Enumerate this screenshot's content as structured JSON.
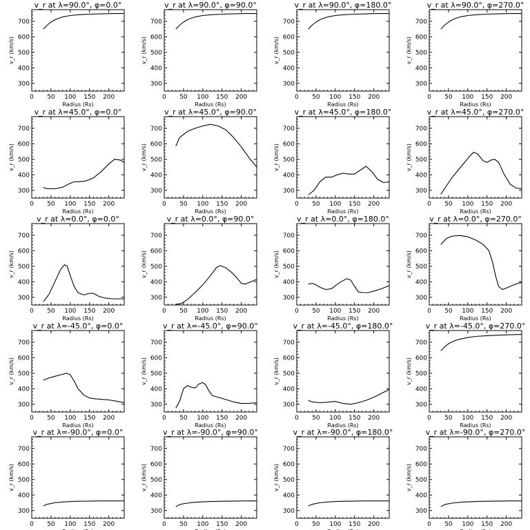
{
  "chart_data": [
    {
      "type": "line",
      "title": "v_r at λ=90.0°, φ=0.0°",
      "xlabel": "Radius (Rs)",
      "ylabel": "v_r (km/s)",
      "xlim": [
        0,
        240
      ],
      "ylim": [
        250,
        775
      ],
      "xticks": [
        0,
        50,
        100,
        150,
        200
      ],
      "yticks": [
        300,
        400,
        500,
        600,
        700
      ],
      "x": [
        30,
        40,
        50,
        60,
        70,
        80,
        100,
        120,
        150,
        180,
        210,
        240
      ],
      "y": [
        650,
        675,
        695,
        710,
        720,
        728,
        737,
        742,
        746,
        748,
        750,
        750
      ]
    },
    {
      "type": "line",
      "title": "v_r at λ=90.0°, φ=90.0°",
      "xlabel": "Radius (Rs)",
      "ylabel": "v_r (km/s)",
      "xlim": [
        0,
        240
      ],
      "ylim": [
        250,
        775
      ],
      "xticks": [
        0,
        50,
        100,
        150,
        200
      ],
      "yticks": [
        300,
        400,
        500,
        600,
        700
      ],
      "x": [
        30,
        40,
        50,
        60,
        70,
        80,
        100,
        120,
        150,
        180,
        210,
        240
      ],
      "y": [
        650,
        675,
        695,
        710,
        720,
        728,
        737,
        742,
        746,
        748,
        750,
        750
      ]
    },
    {
      "type": "line",
      "title": "v_r at λ=90.0°, φ=180.0°",
      "xlabel": "Radius (Rs)",
      "ylabel": "v_r (km/s)",
      "xlim": [
        0,
        240
      ],
      "ylim": [
        250,
        775
      ],
      "xticks": [
        0,
        50,
        100,
        150,
        200
      ],
      "yticks": [
        300,
        400,
        500,
        600,
        700
      ],
      "x": [
        30,
        40,
        50,
        60,
        70,
        80,
        100,
        120,
        150,
        180,
        210,
        240
      ],
      "y": [
        650,
        675,
        695,
        710,
        720,
        728,
        737,
        742,
        746,
        748,
        750,
        750
      ]
    },
    {
      "type": "line",
      "title": "v_r at λ=90.0°, φ=270.0°",
      "xlabel": "Radius (Rs)",
      "ylabel": "v_r (km/s)",
      "xlim": [
        0,
        240
      ],
      "ylim": [
        250,
        775
      ],
      "xticks": [
        0,
        50,
        100,
        150,
        200
      ],
      "yticks": [
        300,
        400,
        500,
        600,
        700
      ],
      "x": [
        30,
        40,
        50,
        60,
        70,
        80,
        100,
        120,
        150,
        180,
        210,
        240
      ],
      "y": [
        650,
        675,
        695,
        710,
        720,
        728,
        737,
        742,
        746,
        748,
        750,
        750
      ]
    },
    {
      "type": "line",
      "title": "v_r at λ=45.0°, φ=0.0°",
      "xlabel": "Radius (Rs)",
      "ylabel": "v_r (km/s)",
      "xlim": [
        0,
        240
      ],
      "ylim": [
        250,
        775
      ],
      "xticks": [
        0,
        50,
        100,
        150,
        200
      ],
      "yticks": [
        300,
        400,
        500,
        600,
        700
      ],
      "x": [
        30,
        40,
        60,
        80,
        100,
        110,
        120,
        140,
        160,
        180,
        200,
        215,
        230,
        240
      ],
      "y": [
        318,
        310,
        310,
        320,
        345,
        355,
        355,
        360,
        380,
        420,
        470,
        500,
        495,
        480
      ]
    },
    {
      "type": "line",
      "title": "v_r at λ=45.0°, φ=90.0°",
      "xlabel": "Radius (Rs)",
      "ylabel": "v_r (km/s)",
      "xlim": [
        0,
        240
      ],
      "ylim": [
        250,
        775
      ],
      "xticks": [
        0,
        50,
        100,
        150,
        200
      ],
      "yticks": [
        300,
        400,
        500,
        600,
        700
      ],
      "x": [
        30,
        40,
        60,
        80,
        100,
        120,
        140,
        160,
        180,
        200,
        220,
        240
      ],
      "y": [
        585,
        640,
        680,
        700,
        715,
        725,
        715,
        690,
        640,
        580,
        510,
        450
      ]
    },
    {
      "type": "line",
      "title": "v_r at λ=45.0°, φ=180.0°",
      "xlabel": "Radius (Rs)",
      "ylabel": "v_r (km/s)",
      "xlim": [
        0,
        240
      ],
      "ylim": [
        250,
        775
      ],
      "xticks": [
        0,
        50,
        100,
        150,
        200
      ],
      "yticks": [
        300,
        400,
        500,
        600,
        700
      ],
      "x": [
        30,
        45,
        60,
        75,
        90,
        105,
        120,
        135,
        150,
        165,
        180,
        195,
        210,
        225,
        240
      ],
      "y": [
        270,
        300,
        355,
        385,
        385,
        400,
        410,
        405,
        405,
        430,
        455,
        420,
        370,
        350,
        355
      ]
    },
    {
      "type": "line",
      "title": "v_r at λ=45.0°, φ=270.0°",
      "xlabel": "Radius (Rs)",
      "ylabel": "v_r (km/s)",
      "xlim": [
        0,
        240
      ],
      "ylim": [
        250,
        775
      ],
      "xticks": [
        0,
        50,
        100,
        150,
        200
      ],
      "yticks": [
        300,
        400,
        500,
        600,
        700
      ],
      "x": [
        30,
        45,
        60,
        75,
        90,
        105,
        115,
        125,
        140,
        150,
        160,
        170,
        180,
        195,
        210,
        225,
        240
      ],
      "y": [
        275,
        330,
        385,
        430,
        475,
        520,
        545,
        535,
        490,
        480,
        495,
        500,
        480,
        400,
        340,
        315,
        310
      ]
    },
    {
      "type": "line",
      "title": "v_r at λ=0.0°, φ=0.0°",
      "xlabel": "Radius (Rs)",
      "ylabel": "v_r (km/s)",
      "xlim": [
        0,
        240
      ],
      "ylim": [
        250,
        775
      ],
      "xticks": [
        0,
        50,
        100,
        150,
        200
      ],
      "yticks": [
        300,
        400,
        500,
        600,
        700
      ],
      "x": [
        30,
        45,
        60,
        75,
        85,
        92,
        100,
        110,
        120,
        135,
        150,
        160,
        175,
        190,
        210,
        240
      ],
      "y": [
        272,
        320,
        400,
        480,
        510,
        500,
        440,
        370,
        330,
        315,
        325,
        325,
        305,
        295,
        290,
        290
      ]
    },
    {
      "type": "line",
      "title": "v_r at λ=0.0°, φ=90.0°",
      "xlabel": "Radius (Rs)",
      "ylabel": "v_r (km/s)",
      "xlim": [
        0,
        240
      ],
      "ylim": [
        250,
        775
      ],
      "xticks": [
        0,
        50,
        100,
        150,
        200
      ],
      "yticks": [
        300,
        400,
        500,
        600,
        700
      ],
      "x": [
        30,
        45,
        60,
        80,
        100,
        120,
        135,
        145,
        160,
        175,
        190,
        200,
        210,
        225,
        240
      ],
      "y": [
        255,
        260,
        285,
        330,
        380,
        440,
        490,
        505,
        490,
        460,
        420,
        390,
        385,
        400,
        415
      ]
    },
    {
      "type": "line",
      "title": "v_r at λ=0.0°, φ=180.0°",
      "xlabel": "Radius (Rs)",
      "ylabel": "v_r (km/s)",
      "xlim": [
        0,
        240
      ],
      "ylim": [
        250,
        775
      ],
      "xticks": [
        0,
        50,
        100,
        150,
        200
      ],
      "yticks": [
        300,
        400,
        500,
        600,
        700
      ],
      "x": [
        30,
        40,
        50,
        60,
        75,
        90,
        100,
        115,
        130,
        140,
        150,
        160,
        170,
        185,
        200,
        220,
        240
      ],
      "y": [
        385,
        390,
        380,
        365,
        350,
        355,
        375,
        400,
        420,
        410,
        370,
        335,
        330,
        330,
        340,
        355,
        375
      ]
    },
    {
      "type": "line",
      "title": "v_r at λ=0.0°, φ=270.0°",
      "xlabel": "Radius (Rs)",
      "ylabel": "v_r (km/s)",
      "xlim": [
        0,
        240
      ],
      "ylim": [
        250,
        775
      ],
      "xticks": [
        0,
        50,
        100,
        150,
        200
      ],
      "yticks": [
        300,
        400,
        500,
        600,
        700
      ],
      "x": [
        30,
        45,
        60,
        80,
        100,
        120,
        140,
        155,
        165,
        172,
        180,
        190,
        200,
        215,
        230,
        240
      ],
      "y": [
        640,
        680,
        695,
        698,
        690,
        670,
        640,
        600,
        520,
        440,
        370,
        350,
        360,
        375,
        390,
        395
      ]
    },
    {
      "type": "line",
      "title": "v_r at λ=-45.0°, φ=0.0°",
      "xlabel": "Radius (Rs)",
      "ylabel": "v_r (km/s)",
      "xlim": [
        0,
        240
      ],
      "ylim": [
        250,
        775
      ],
      "xticks": [
        0,
        50,
        100,
        150,
        200
      ],
      "yticks": [
        300,
        400,
        500,
        600,
        700
      ],
      "x": [
        30,
        45,
        60,
        75,
        90,
        100,
        110,
        120,
        135,
        150,
        165,
        180,
        200,
        220,
        240
      ],
      "y": [
        455,
        470,
        480,
        490,
        500,
        490,
        450,
        400,
        360,
        340,
        335,
        332,
        328,
        320,
        310
      ]
    },
    {
      "type": "line",
      "title": "v_r at λ=-45.0°, φ=90.0°",
      "xlabel": "Radius (Rs)",
      "ylabel": "v_r (km/s)",
      "xlim": [
        0,
        240
      ],
      "ylim": [
        250,
        775
      ],
      "xticks": [
        0,
        50,
        100,
        150,
        200
      ],
      "yticks": [
        300,
        400,
        500,
        600,
        700
      ],
      "x": [
        30,
        40,
        50,
        60,
        70,
        80,
        90,
        100,
        108,
        115,
        125,
        140,
        160,
        180,
        200,
        220,
        240
      ],
      "y": [
        275,
        320,
        400,
        420,
        410,
        405,
        430,
        440,
        425,
        390,
        355,
        345,
        330,
        315,
        305,
        305,
        310
      ]
    },
    {
      "type": "line",
      "title": "v_r at λ=-45.0°, φ=180.0°",
      "xlabel": "Radius (Rs)",
      "ylabel": "v_r (km/s)",
      "xlim": [
        0,
        240
      ],
      "ylim": [
        250,
        775
      ],
      "xticks": [
        0,
        50,
        100,
        150,
        200
      ],
      "yticks": [
        300,
        400,
        500,
        600,
        700
      ],
      "x": [
        30,
        40,
        60,
        80,
        100,
        120,
        140,
        160,
        180,
        200,
        220,
        240
      ],
      "y": [
        325,
        315,
        310,
        313,
        318,
        305,
        300,
        310,
        325,
        345,
        370,
        395
      ]
    },
    {
      "type": "line",
      "title": "v_r at λ=-45.0°, φ=270.0°",
      "xlabel": "Radius (Rs)",
      "ylabel": "v_r (km/s)",
      "xlim": [
        0,
        240
      ],
      "ylim": [
        250,
        775
      ],
      "xticks": [
        0,
        50,
        100,
        150,
        200
      ],
      "yticks": [
        300,
        400,
        500,
        600,
        700
      ],
      "x": [
        30,
        40,
        50,
        60,
        70,
        80,
        100,
        120,
        150,
        180,
        210,
        240
      ],
      "y": [
        645,
        670,
        690,
        703,
        713,
        720,
        730,
        737,
        742,
        745,
        748,
        750
      ]
    },
    {
      "type": "line",
      "title": "v_r at λ=-90.0°, φ=0.0°",
      "xlabel": "Radius (Rs)",
      "ylabel": "v_r (km/s)",
      "xlim": [
        0,
        240
      ],
      "ylim": [
        250,
        775
      ],
      "xticks": [
        0,
        50,
        100,
        150,
        200
      ],
      "yticks": [
        300,
        400,
        500,
        600,
        700
      ],
      "x": [
        30,
        40,
        50,
        60,
        80,
        100,
        120,
        150,
        180,
        210,
        240
      ],
      "y": [
        330,
        340,
        345,
        350,
        355,
        358,
        360,
        361,
        362,
        362,
        362
      ]
    },
    {
      "type": "line",
      "title": "v_r at λ=-90.0°, φ=90.0°",
      "xlabel": "Radius (Rs)",
      "ylabel": "v_r (km/s)",
      "xlim": [
        0,
        240
      ],
      "ylim": [
        250,
        775
      ],
      "xticks": [
        0,
        50,
        100,
        150,
        200
      ],
      "yticks": [
        300,
        400,
        500,
        600,
        700
      ],
      "x": [
        30,
        40,
        50,
        60,
        80,
        100,
        120,
        150,
        180,
        210,
        240
      ],
      "y": [
        325,
        338,
        344,
        348,
        353,
        356,
        358,
        360,
        361,
        362,
        362
      ]
    },
    {
      "type": "line",
      "title": "v_r at λ=-90.0°, φ=180.0°",
      "xlabel": "Radius (Rs)",
      "ylabel": "v_r (km/s)",
      "xlim": [
        0,
        240
      ],
      "ylim": [
        250,
        775
      ],
      "xticks": [
        0,
        50,
        100,
        150,
        200
      ],
      "yticks": [
        300,
        400,
        500,
        600,
        700
      ],
      "x": [
        30,
        40,
        50,
        60,
        80,
        100,
        120,
        150,
        180,
        210,
        240
      ],
      "y": [
        330,
        340,
        345,
        350,
        355,
        358,
        360,
        361,
        362,
        362,
        362
      ]
    },
    {
      "type": "line",
      "title": "v_r at λ=-90.0°, φ=270.0°",
      "xlabel": "Radius (Rs)",
      "ylabel": "v_r (km/s)",
      "xlim": [
        0,
        240
      ],
      "ylim": [
        250,
        775
      ],
      "xticks": [
        0,
        50,
        100,
        150,
        200
      ],
      "yticks": [
        300,
        400,
        500,
        600,
        700
      ],
      "x": [
        30,
        40,
        50,
        60,
        80,
        100,
        120,
        150,
        180,
        210,
        240
      ],
      "y": [
        325,
        338,
        344,
        348,
        353,
        356,
        358,
        360,
        361,
        362,
        362
      ]
    }
  ]
}
